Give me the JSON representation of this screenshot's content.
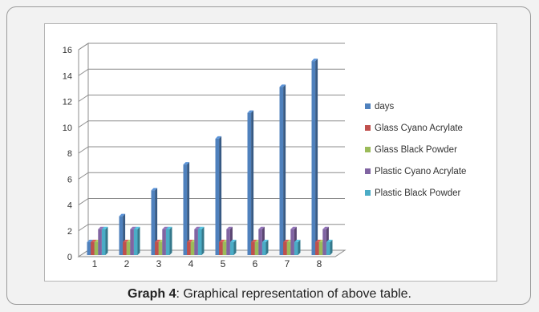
{
  "caption": {
    "label": "Graph 4",
    "text": ": Graphical representation of above table."
  },
  "colors": {
    "days": "#4f81bd",
    "glass_cyano": "#c0504d",
    "glass_black": "#9bbb59",
    "plastic_cyano": "#8064a2",
    "plastic_black": "#4bacc6"
  },
  "chart_data": {
    "type": "bar",
    "categories": [
      "1",
      "2",
      "3",
      "4",
      "5",
      "6",
      "7",
      "8"
    ],
    "series": [
      {
        "name": "days",
        "values": [
          1,
          3,
          5,
          7,
          9,
          11,
          13,
          15
        ],
        "color": "#4f81bd"
      },
      {
        "name": "Glass Cyano Acrylate",
        "values": [
          1,
          1,
          1,
          1,
          1,
          1,
          1,
          1
        ],
        "color": "#c0504d"
      },
      {
        "name": "Glass Black Powder",
        "values": [
          1,
          1,
          1,
          1,
          1,
          1,
          1,
          1
        ],
        "color": "#9bbb59"
      },
      {
        "name": "Plastic Cyano Acrylate",
        "values": [
          2,
          2,
          2,
          2,
          2,
          2,
          2,
          2
        ],
        "color": "#8064a2"
      },
      {
        "name": "Plastic Black Powder",
        "values": [
          2,
          2,
          2,
          2,
          1,
          1,
          1,
          1
        ],
        "color": "#4bacc6"
      }
    ],
    "yticks": [
      0,
      2,
      4,
      6,
      8,
      10,
      12,
      14,
      16
    ],
    "ylim": [
      0,
      16
    ],
    "grid": true,
    "legend_position": "right",
    "style": "3d-clustered"
  }
}
